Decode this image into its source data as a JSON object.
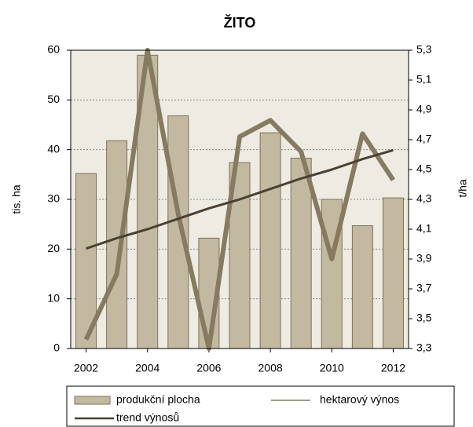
{
  "chart_data": {
    "type": "bar-line",
    "title": "ŽITO",
    "categories": [
      "2002",
      null,
      "2004",
      null,
      "2006",
      null,
      "2008",
      null,
      "2010",
      null,
      "2012"
    ],
    "ylabel": "tis. ha",
    "y2label": "t/ha",
    "ylim": [
      0,
      60
    ],
    "yticks": [
      0,
      10,
      20,
      30,
      40,
      50,
      60
    ],
    "y2lim": [
      3.3,
      5.3
    ],
    "y2ticks": [
      {
        "value": 3.3,
        "label": "3,3"
      },
      {
        "value": 3.5,
        "label": "3,5"
      },
      {
        "value": 3.7,
        "label": "3,7"
      },
      {
        "value": 3.9,
        "label": "3,9"
      },
      {
        "value": 4.1,
        "label": "4,1"
      },
      {
        "value": 4.3,
        "label": "4,3"
      },
      {
        "value": 4.5,
        "label": "4,5"
      },
      {
        "value": 4.7,
        "label": "4,7"
      },
      {
        "value": 4.9,
        "label": "4,9"
      },
      {
        "value": 5.1,
        "label": "5,1"
      },
      {
        "value": 5.3,
        "label": "5,3"
      }
    ],
    "grid": true,
    "series": [
      {
        "name": "produkční plocha",
        "type": "bar",
        "color": "#c3b9a1",
        "values": [
          35.2,
          41.8,
          59,
          46.8,
          22.2,
          37.4,
          43.4,
          38.3,
          30,
          24.7,
          30.3
        ]
      },
      {
        "name": "hektarový výnos",
        "type": "line",
        "axis": "y2",
        "color": "#867b60",
        "values": [
          3.36,
          3.8,
          5.3,
          4.2,
          3.3,
          4.72,
          4.83,
          4.62,
          3.9,
          4.74,
          4.43
        ]
      },
      {
        "name": "trend výnosů",
        "type": "line",
        "axis": "y2",
        "color": "#4a4030",
        "values": [
          3.97,
          4.04,
          4.1,
          4.17,
          4.24,
          4.3,
          4.37,
          4.44,
          4.5,
          4.57,
          4.63
        ]
      }
    ]
  }
}
